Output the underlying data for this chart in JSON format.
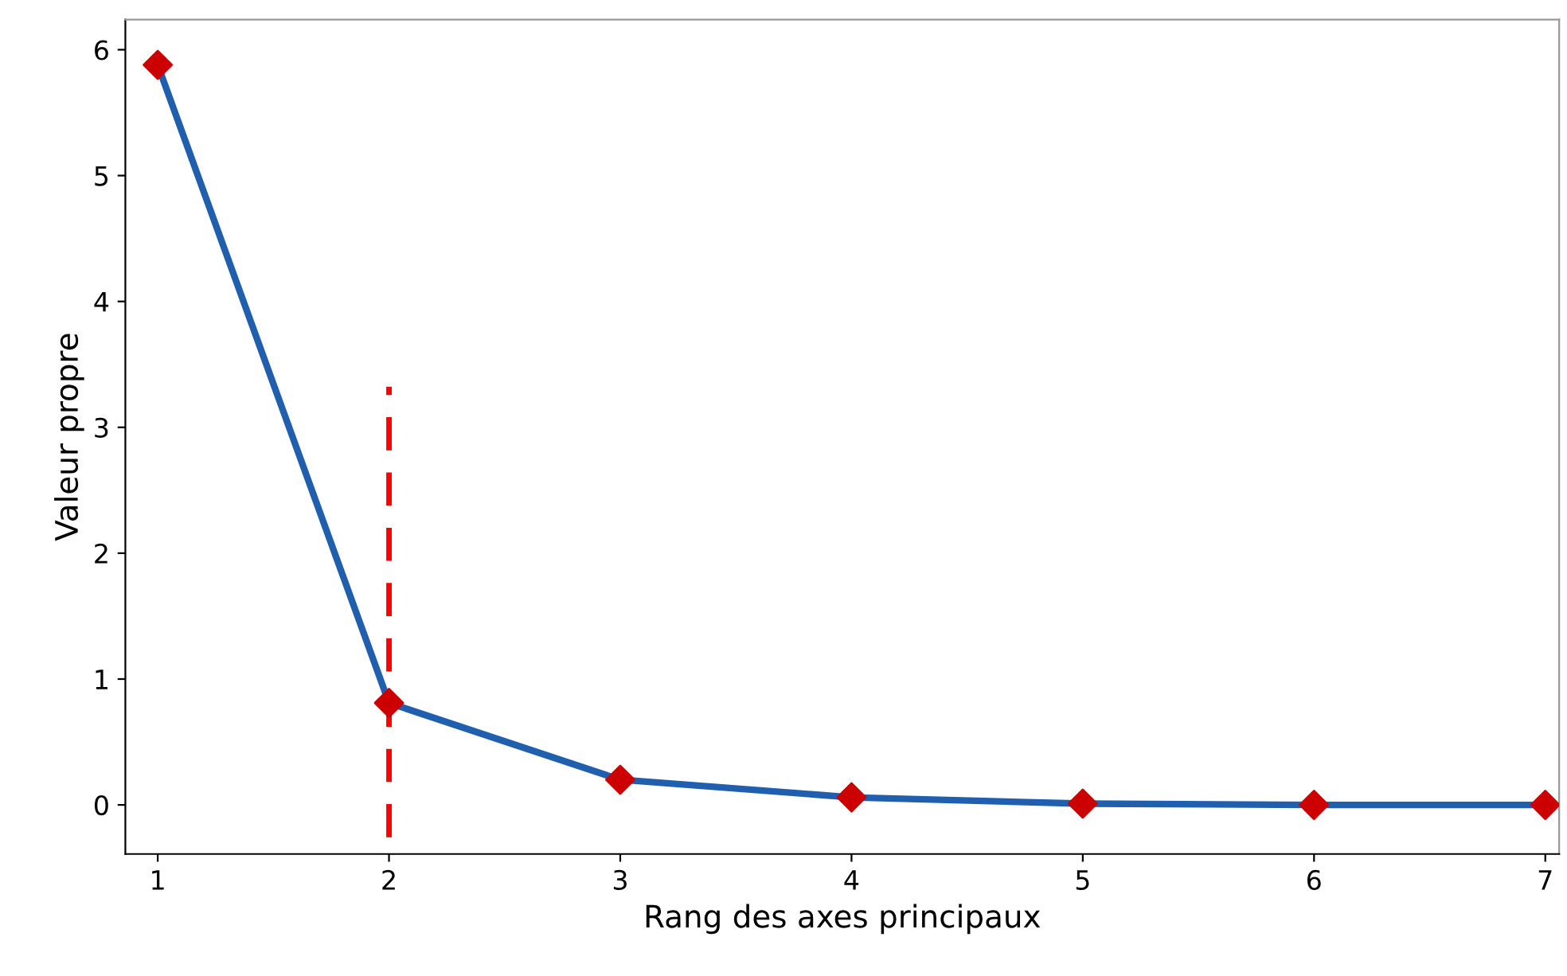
{
  "chart_data": {
    "type": "line",
    "xlabel": "Rang des axes principaux",
    "ylabel": "Valeur propre",
    "x": [
      1,
      2,
      3,
      4,
      5,
      6,
      7
    ],
    "series": [
      {
        "color": "#1f5fad",
        "colors": [
          "#cc0000",
          "#cc0000",
          "#cc0000",
          "#cc0000",
          "#cc0000",
          "#cc0000",
          "#cc0000"
        ],
        "values": [
          5.88,
          0.81,
          0.2,
          0.06,
          0.01,
          0.0,
          0.0
        ]
      }
    ],
    "marker": "diamond",
    "line_style": "solid",
    "grid": false,
    "legend": false,
    "xlim": [
      0.86,
      7.06
    ],
    "ylim": [
      -0.39,
      6.24
    ],
    "xticks": [
      1,
      2,
      3,
      4,
      5,
      6,
      7
    ],
    "yticks": [
      0,
      1,
      2,
      3,
      4,
      5,
      6
    ],
    "ref_lines": [
      {
        "axis": "x",
        "value": 2,
        "color": "#ff0000",
        "line_style": "dashed"
      }
    ]
  }
}
